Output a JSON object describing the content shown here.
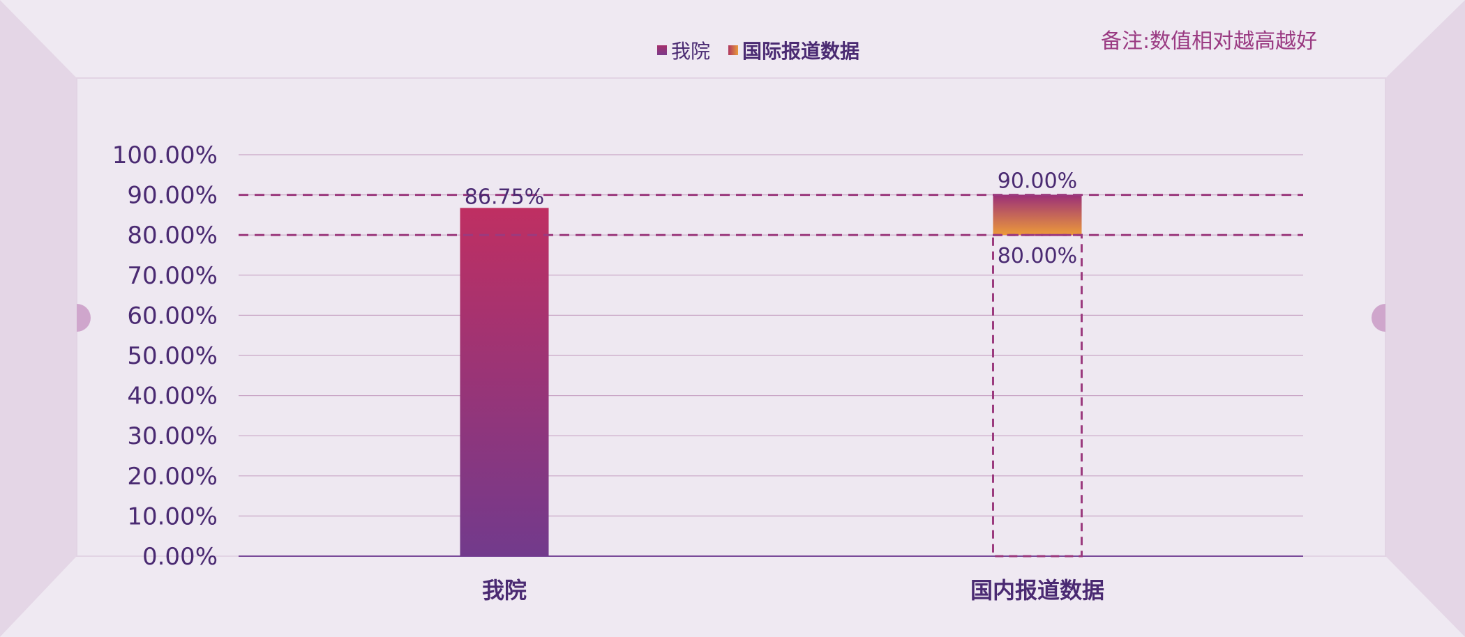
{
  "note": "备注:数值相对越高越好",
  "legend": [
    {
      "label": "我院",
      "color": "#9b2f72"
    },
    {
      "label": "国际报道数据",
      "gradient": [
        "#b0365e",
        "#e89a3c"
      ]
    }
  ],
  "colors": {
    "bar_top": "#bf2f62",
    "bar_bottom": "#723a8c",
    "range_top": "#9b3078",
    "range_bottom": "#ec9a3a",
    "reference_line": "#9b3a7e",
    "axis_text": "#4a2a72",
    "background": "#eee8f1"
  },
  "chart_data": {
    "type": "bar",
    "categories": [
      "我院",
      "国内报道数据"
    ],
    "series": [
      {
        "name": "我院",
        "values": [
          86.75,
          null
        ],
        "labels": [
          "86.75%",
          ""
        ]
      },
      {
        "name": "国际报道数据",
        "range": [
          80.0,
          90.0
        ],
        "category": "国内报道数据",
        "labels": [
          "90.00%",
          "80.00%"
        ]
      }
    ],
    "reference_lines": [
      80,
      90
    ],
    "ylim": [
      0,
      100
    ],
    "yticks": [
      "0.00%",
      "10.00%",
      "20.00%",
      "30.00%",
      "40.00%",
      "50.00%",
      "60.00%",
      "70.00%",
      "80.00%",
      "90.00%",
      "100.00%"
    ],
    "grid": true,
    "legend_position": "top"
  }
}
